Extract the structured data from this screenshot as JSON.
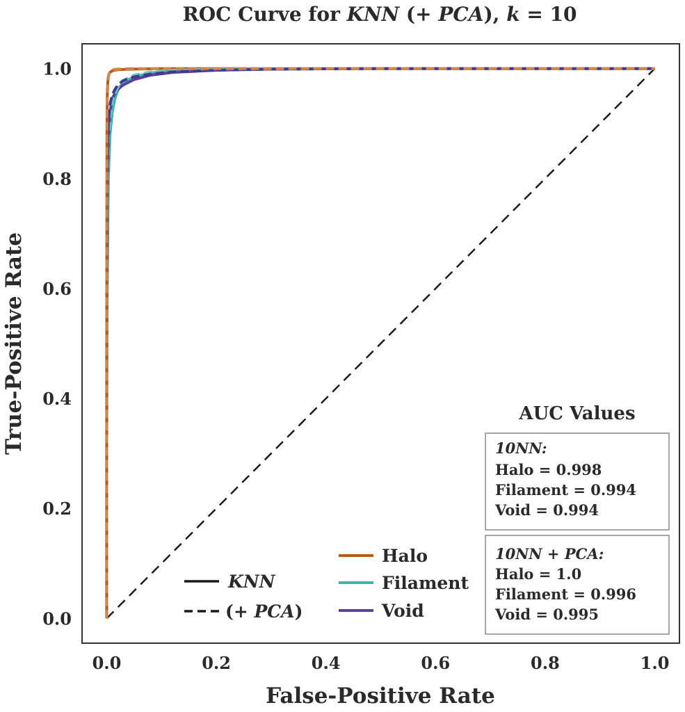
{
  "chart_data": {
    "type": "line",
    "title": {
      "prefix": "ROC Curve for ",
      "model": "KNN",
      "pca": "(+ PCA)",
      "k_label": "k",
      "k_value": "10"
    },
    "xlabel": "False-Positive Rate",
    "ylabel": "True-Positive Rate",
    "xlim": [
      -0.045,
      1.045
    ],
    "ylim": [
      -0.045,
      1.045
    ],
    "xticks": [
      "0.0",
      "0.2",
      "0.4",
      "0.6",
      "0.8",
      "1.0"
    ],
    "yticks": [
      "0.0",
      "0.2",
      "0.4",
      "0.6",
      "0.8",
      "1.0"
    ],
    "grid": false,
    "series": [
      {
        "name": "Halo",
        "style": "solid",
        "color": "#b85a1c",
        "x": [
          0,
          0.0,
          0.0005,
          0.001,
          0.002,
          0.003,
          0.004,
          0.006,
          0.01,
          0.02,
          0.05,
          0.1,
          0.3,
          1.0
        ],
        "y": [
          0,
          0.6,
          0.9,
          0.95,
          0.975,
          0.985,
          0.99,
          0.993,
          0.996,
          0.998,
          0.999,
          1.0,
          1.0,
          1.0
        ]
      },
      {
        "name": "Halo",
        "style": "dashed",
        "color": "#d0884a",
        "x": [
          0,
          0.0,
          0.0005,
          0.001,
          0.002,
          0.004,
          0.007,
          0.012,
          0.02,
          0.05,
          0.1,
          1.0
        ],
        "y": [
          0,
          0.7,
          0.93,
          0.96,
          0.98,
          0.99,
          0.995,
          0.998,
          0.999,
          1.0,
          1.0,
          1.0
        ]
      },
      {
        "name": "Filament",
        "style": "solid",
        "color": "#3fb5ac",
        "x": [
          0,
          0.0,
          0.001,
          0.003,
          0.006,
          0.01,
          0.015,
          0.02,
          0.03,
          0.05,
          0.08,
          0.12,
          0.2,
          0.3,
          0.5,
          1.0
        ],
        "y": [
          0,
          0.3,
          0.6,
          0.8,
          0.88,
          0.92,
          0.945,
          0.96,
          0.975,
          0.985,
          0.992,
          0.996,
          0.998,
          0.999,
          1.0,
          1.0
        ]
      },
      {
        "name": "Filament",
        "style": "dashed",
        "color": "#6cc9c0",
        "x": [
          0,
          0.0,
          0.001,
          0.003,
          0.006,
          0.01,
          0.015,
          0.02,
          0.03,
          0.05,
          0.08,
          0.12,
          0.2,
          0.3,
          1.0
        ],
        "y": [
          0,
          0.4,
          0.7,
          0.86,
          0.91,
          0.94,
          0.955,
          0.965,
          0.978,
          0.988,
          0.994,
          0.997,
          0.999,
          1.0,
          1.0
        ]
      },
      {
        "name": "Void",
        "style": "solid",
        "color": "#5b3d9a",
        "x": [
          0,
          0.0,
          0.001,
          0.003,
          0.006,
          0.01,
          0.015,
          0.02,
          0.03,
          0.05,
          0.08,
          0.12,
          0.2,
          0.3,
          0.5,
          1.0
        ],
        "y": [
          0,
          0.5,
          0.75,
          0.87,
          0.92,
          0.945,
          0.955,
          0.962,
          0.97,
          0.98,
          0.988,
          0.993,
          0.997,
          0.999,
          1.0,
          1.0
        ]
      },
      {
        "name": "Void",
        "style": "dashed",
        "color": "#3f3a8c",
        "x": [
          0,
          0.0,
          0.001,
          0.003,
          0.006,
          0.01,
          0.015,
          0.02,
          0.03,
          0.05,
          0.08,
          0.12,
          0.2,
          0.3,
          0.5,
          1.0
        ],
        "y": [
          0,
          0.55,
          0.8,
          0.9,
          0.935,
          0.952,
          0.962,
          0.97,
          0.978,
          0.985,
          0.99,
          0.994,
          0.997,
          0.999,
          1.0,
          1.0
        ]
      },
      {
        "name": "",
        "style": "dashed",
        "color": "#1a1a1a",
        "x": [
          0,
          1
        ],
        "y": [
          0,
          1
        ]
      }
    ],
    "legend": {
      "placement": "lower-center",
      "styles": [
        {
          "label": "KNN",
          "style": "solid"
        },
        {
          "label": "(+ PCA)",
          "style": "dashed"
        }
      ],
      "classes": [
        {
          "label": "Halo",
          "color": "#b85a1c"
        },
        {
          "label": "Filament",
          "color": "#3fb5ac"
        },
        {
          "label": "Void",
          "color": "#5b3d9a"
        }
      ]
    },
    "auc": {
      "title": "AUC Values",
      "placement": "lower-right",
      "boxes": [
        {
          "heading": "10NN:",
          "lines": [
            "Halo = 0.998",
            "Filament = 0.994",
            "Void = 0.994"
          ]
        },
        {
          "heading": "10NN + PCA:",
          "lines": [
            "Halo = 1.0",
            "Filament = 0.996",
            "Void = 0.995"
          ]
        }
      ]
    }
  }
}
